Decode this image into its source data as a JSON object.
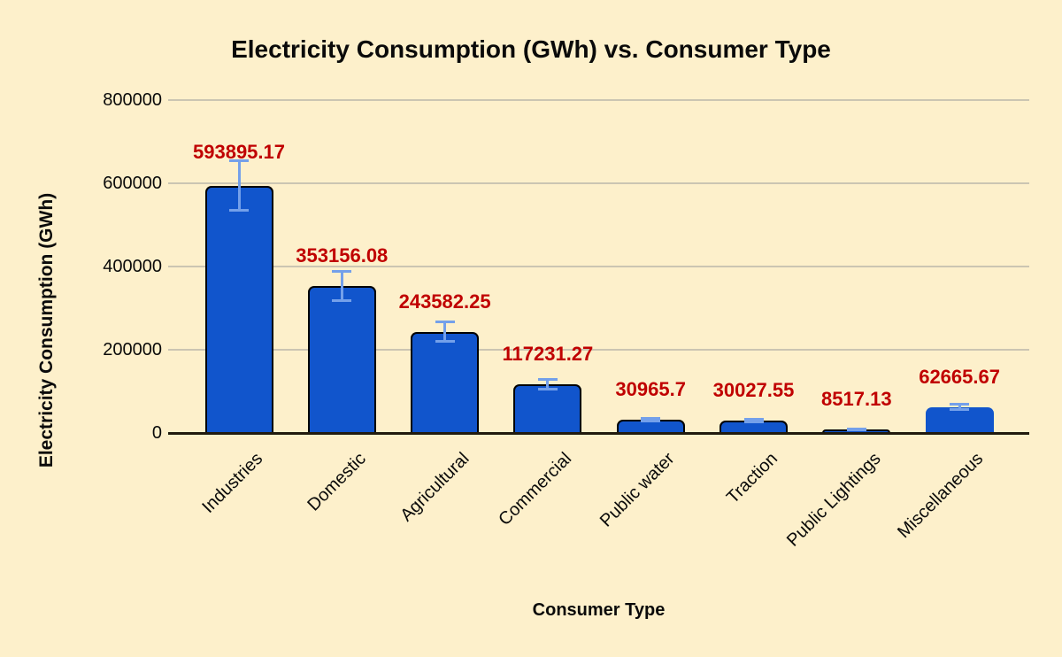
{
  "chart_data": {
    "type": "bar",
    "title": "Electricity Consumption (GWh) vs. Consumer Type",
    "xlabel": "Consumer Type",
    "ylabel": "Electricity Consumption (GWh)",
    "categories": [
      "Industries",
      "Domestic",
      "Agricultural",
      "Commercial",
      "Public water",
      "Traction",
      "Public Lightings",
      "Miscellaneous"
    ],
    "values": [
      593895.17,
      353156.08,
      243582.25,
      117231.27,
      30965.7,
      30027.55,
      8517.13,
      62665.67
    ],
    "value_labels": [
      "593895.17",
      "353156.08",
      "243582.25",
      "117231.27",
      "30965.7",
      "30027.55",
      "8517.13",
      "62665.67"
    ],
    "y_ticks": [
      800000,
      600000,
      400000,
      200000,
      0
    ],
    "ylim": [
      0,
      800000
    ],
    "error_bars": "±10% of value, with caps",
    "error_ratio": 0.1,
    "grid": "horizontal gridlines on",
    "legend": "none",
    "colors": {
      "background": "#FDF0CB",
      "bar_fill": "#1155CC",
      "bar_outline": "#000000",
      "last_bar_outline": "none",
      "error_bar": "#74A0EA",
      "value_label": "#C00000",
      "gridline": "#CBC5B2",
      "axis_line": "#211B0E",
      "text": "#0A0A0A"
    }
  }
}
